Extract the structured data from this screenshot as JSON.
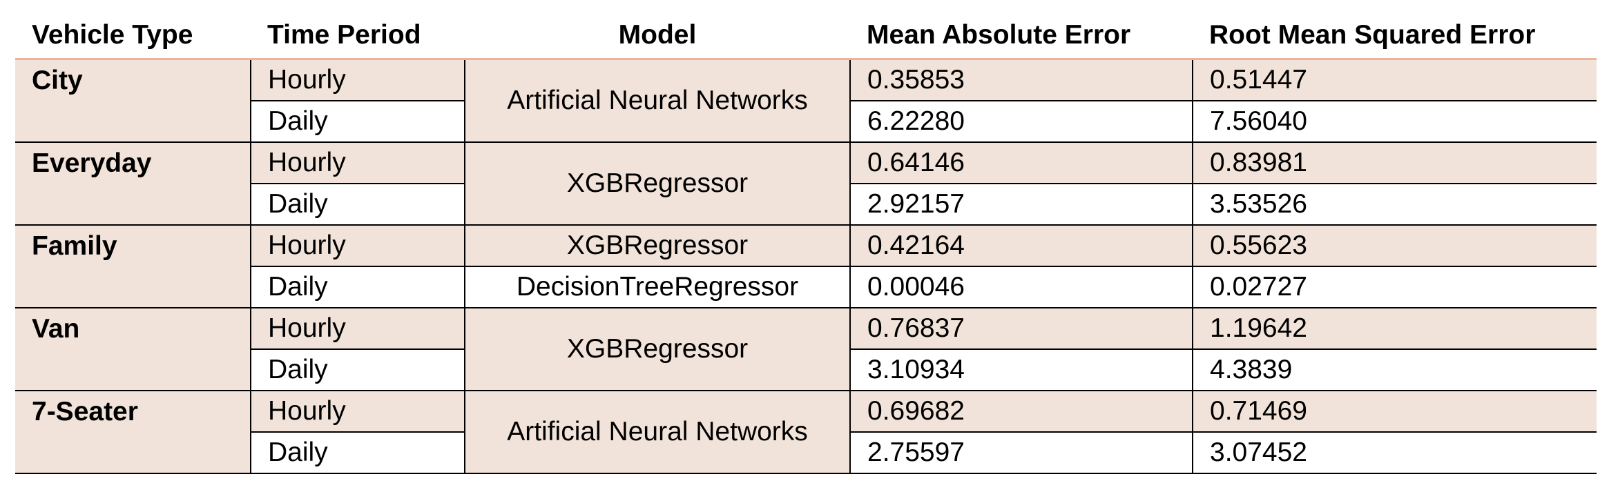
{
  "headers": [
    "Vehicle Type",
    "Time Period",
    "Model",
    "Mean Absolute Error",
    "Root Mean Squared Error"
  ],
  "groups": [
    {
      "vehicle": "City",
      "rows": [
        {
          "period": "Hourly",
          "mae": "0.35853",
          "rmse": "0.51447"
        },
        {
          "period": "Daily",
          "mae": "6.22280",
          "rmse": "7.56040"
        }
      ],
      "models": [
        "Artificial Neural Networks"
      ]
    },
    {
      "vehicle": "Everyday",
      "rows": [
        {
          "period": "Hourly",
          "mae": "0.64146",
          "rmse": "0.83981"
        },
        {
          "period": "Daily",
          "mae": "2.92157",
          "rmse": "3.53526"
        }
      ],
      "models": [
        "XGBRegressor"
      ]
    },
    {
      "vehicle": "Family",
      "rows": [
        {
          "period": "Hourly",
          "mae": "0.42164",
          "rmse": "0.55623"
        },
        {
          "period": "Daily",
          "mae": "0.00046",
          "rmse": "0.02727"
        }
      ],
      "models": [
        "XGBRegressor",
        "DecisionTreeRegressor"
      ]
    },
    {
      "vehicle": "Van",
      "rows": [
        {
          "period": "Hourly",
          "mae": "0.76837",
          "rmse": "1.19642"
        },
        {
          "period": "Daily",
          "mae": "3.10934",
          "rmse": "4.3839"
        }
      ],
      "models": [
        "XGBRegressor"
      ]
    },
    {
      "vehicle": "7-Seater",
      "rows": [
        {
          "period": "Hourly",
          "mae": "0.69682",
          "rmse": "0.71469"
        },
        {
          "period": "Daily",
          "mae": "2.75597",
          "rmse": "3.07452"
        }
      ],
      "models": [
        "Artificial Neural Networks"
      ]
    }
  ]
}
